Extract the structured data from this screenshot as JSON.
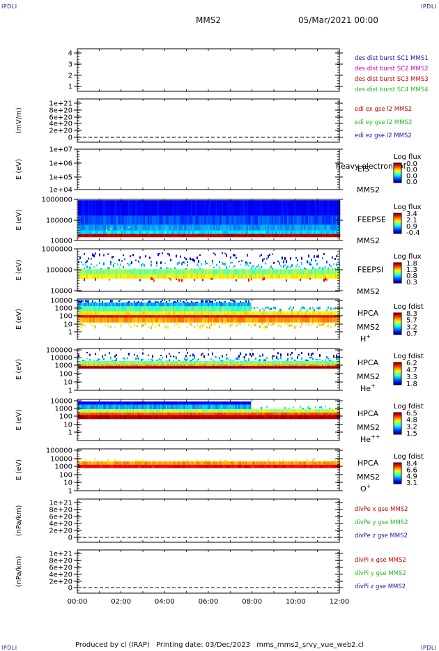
{
  "header": {
    "corner_tl": "IPDLI",
    "corner_tr": "IPDLI",
    "corner_bl": "IPDLI",
    "corner_br": "IPDLI",
    "spacecraft": "MMS2",
    "date": "05/Mar/2021 00:00"
  },
  "footer": {
    "produced_by": "Produced by cl (IRAP)",
    "printing_date": "Printing date: 03/Dec/2023",
    "config": "mms_mms2_srvy_vue_web2.cl"
  },
  "colors": {
    "red": "#d40000",
    "green": "#22bb22",
    "blue": "#1515a8",
    "magenta": "#cc00cc"
  },
  "chart_data": {
    "type": "heatmap",
    "x_axis": {
      "range": [
        "00:00",
        "12:00"
      ],
      "ticks": [
        "00:00",
        "02:00",
        "04:00",
        "06:00",
        "08:00",
        "10:00",
        "12:00"
      ]
    },
    "panels": [
      {
        "id": "burst",
        "ylabel": "",
        "ticks": [
          "4",
          "3",
          "2",
          "1"
        ],
        "legend": [
          {
            "text": "des dist burst SC1 MMS1",
            "color": "#1515a8"
          },
          {
            "text": "des dist burst SC2 MMS2",
            "color": "#cc00cc"
          },
          {
            "text": "des dist burst SC3 MMS3",
            "color": "#d40000"
          },
          {
            "text": "des dist burst SC4 MMS4",
            "color": "#22bb22"
          }
        ]
      },
      {
        "id": "edi",
        "ylabel": "(mV/m)",
        "ticks": [
          "1e+21",
          "8e+20",
          "6e+20",
          "4e+20",
          "2e+20",
          "0"
        ],
        "legend": [
          {
            "text": "edi ex gse l2 MMS2",
            "color": "#d40000"
          },
          {
            "text": "edi ey gse l2 MMS2",
            "color": "#22bb22"
          },
          {
            "text": "edi ez gse l2 MMS2",
            "color": "#1515a8"
          }
        ]
      },
      {
        "id": "eis",
        "ylabel": "E (eV)",
        "ticks": [
          "1e+07",
          "1e+06",
          "1e+05",
          "1e+04"
        ],
        "instrument": "EIS",
        "sc": "MMS2",
        "species": "",
        "overlay": "heavy electron tof",
        "colorbar": {
          "title": "Log flux",
          "labels": [
            "0.0",
            "0.0",
            "0.0",
            "0.0"
          ]
        }
      },
      {
        "id": "feepse",
        "ylabel": "E (eV)",
        "ticks": [
          "1000000",
          "100000",
          "10000"
        ],
        "instrument": "FEEPSE",
        "sc": "MMS2",
        "species": "",
        "colorbar": {
          "title": "Log flux",
          "labels": [
            "3.4",
            "2.1",
            "0.9",
            "-0.4"
          ]
        }
      },
      {
        "id": "feepsi",
        "ylabel": "E (eV)",
        "ticks": [
          "1000000",
          "100000",
          "10000"
        ],
        "instrument": "FEEPSI",
        "sc": "MMS2",
        "species": "",
        "colorbar": {
          "title": "Log flux",
          "labels": [
            "1.8",
            "1.3",
            "0.8",
            "0.3"
          ]
        }
      },
      {
        "id": "hpca_h",
        "ylabel": "E (eV)",
        "ticks": [
          "10000",
          "1000",
          "100",
          "10",
          "1"
        ],
        "instrument": "HPCA",
        "sc": "MMS2",
        "species": "H",
        "charge": "+",
        "colorbar": {
          "title": "Log fdist",
          "labels": [
            "8.3",
            "5.7",
            "3.2",
            "0.7"
          ]
        }
      },
      {
        "id": "hpca_he",
        "ylabel": "E (eV)",
        "ticks": [
          "100000",
          "10000",
          "1000",
          "100",
          "10",
          "1"
        ],
        "instrument": "HPCA",
        "sc": "MMS2",
        "species": "He",
        "charge": "+",
        "colorbar": {
          "title": "Log fdist",
          "labels": [
            "6.2",
            "4.7",
            "3.3",
            "1.8"
          ]
        }
      },
      {
        "id": "hpca_hepp",
        "ylabel": "E (eV)",
        "ticks": [
          "10000",
          "1000",
          "100",
          "10",
          "1"
        ],
        "instrument": "HPCA",
        "sc": "MMS2",
        "species": "He",
        "charge": "++",
        "colorbar": {
          "title": "Log fdist",
          "labels": [
            "6.5",
            "4.8",
            "3.2",
            "1.5"
          ]
        }
      },
      {
        "id": "hpca_o",
        "ylabel": "E (eV)",
        "ticks": [
          "100000",
          "10000",
          "1000",
          "100",
          "10",
          "1"
        ],
        "instrument": "HPCA",
        "sc": "MMS2",
        "species": "O",
        "charge": "+",
        "colorbar": {
          "title": "Log fdist",
          "labels": [
            "8.4",
            "6.6",
            "4.9",
            "3.1"
          ]
        }
      },
      {
        "id": "divpe",
        "ylabel": "(nPa/km)",
        "ticks": [
          "1e+21",
          "8e+20",
          "6e+20",
          "4e+20",
          "2e+20",
          "0"
        ],
        "legend": [
          {
            "text": "divPe x gse MMS2",
            "color": "#d40000"
          },
          {
            "text": "divPe y gse MMS2",
            "color": "#22bb22"
          },
          {
            "text": "divPe z gse MMS2",
            "color": "#1515a8"
          }
        ]
      },
      {
        "id": "divpi",
        "ylabel": "(nPa/km)",
        "ticks": [
          "1e+21",
          "8e+20",
          "6e+20",
          "4e+20",
          "2e+20",
          "0"
        ],
        "legend": [
          {
            "text": "divPi x gse MMS2",
            "color": "#d40000"
          },
          {
            "text": "divPi y gse MMS2",
            "color": "#22bb22"
          },
          {
            "text": "divPi z gse MMS2",
            "color": "#1515a8"
          }
        ]
      }
    ]
  }
}
